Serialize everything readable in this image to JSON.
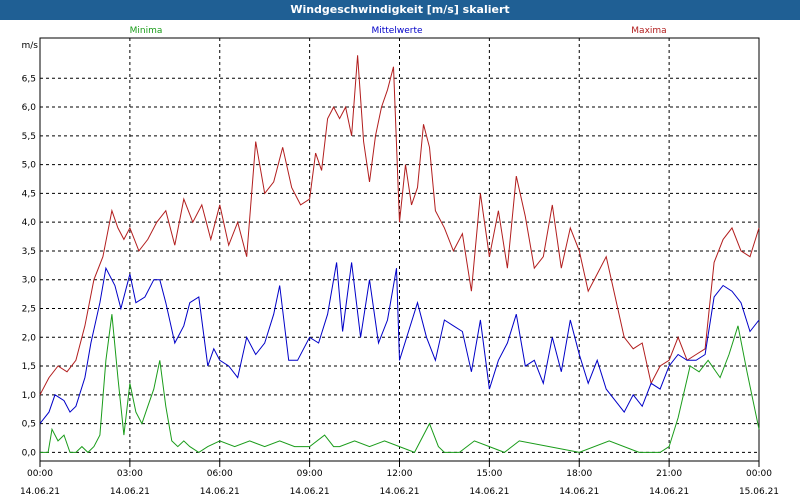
{
  "title": "Windgeschwindigkeit [m/s] skaliert",
  "chart_data": {
    "type": "line",
    "title": "Windgeschwindigkeit [m/s] skaliert",
    "ylabel": "m/s",
    "ylim": [
      -0.15,
      7.2
    ],
    "yticks": [
      0.0,
      0.5,
      1.0,
      1.5,
      2.0,
      2.5,
      3.0,
      3.5,
      4.0,
      4.5,
      5.0,
      5.5,
      6.0,
      6.5
    ],
    "ytick_labels": [
      "0,0",
      "0,5",
      "1,0",
      "1,5",
      "2,0",
      "2,5",
      "3,0",
      "3,5",
      "4,0",
      "4,5",
      "5,0",
      "5,5",
      "6,0",
      "6,5"
    ],
    "xlim": [
      0,
      24
    ],
    "xticks": [
      {
        "x": 0,
        "time": "00:00",
        "date": "14.06.21"
      },
      {
        "x": 3,
        "time": "03:00",
        "date": "14.06.21"
      },
      {
        "x": 6,
        "time": "06:00",
        "date": "14.06.21"
      },
      {
        "x": 9,
        "time": "09:00",
        "date": "14.06.21"
      },
      {
        "x": 12,
        "time": "12:00",
        "date": "14.06.21"
      },
      {
        "x": 15,
        "time": "15:00",
        "date": "14.06.21"
      },
      {
        "x": 18,
        "time": "18:00",
        "date": "14.06.21"
      },
      {
        "x": 21,
        "time": "21:00",
        "date": "14.06.21"
      },
      {
        "x": 24,
        "time": "00:00",
        "date": "15.06.21"
      }
    ],
    "grid": true,
    "legend_placement": "top",
    "series": [
      {
        "name": "Minima",
        "color": "#1a9c1a",
        "x": [
          0,
          0.27,
          0.4,
          0.6,
          0.8,
          1.0,
          1.2,
          1.4,
          1.6,
          1.8,
          2.0,
          2.2,
          2.4,
          2.6,
          2.8,
          3.0,
          3.2,
          3.4,
          3.6,
          3.8,
          4.0,
          4.2,
          4.4,
          4.6,
          4.8,
          5.0,
          5.3,
          5.6,
          6.0,
          6.5,
          7.0,
          7.5,
          8.0,
          8.5,
          9.0,
          9.5,
          9.8,
          10.0,
          10.5,
          11.0,
          11.5,
          12.0,
          12.5,
          13.0,
          13.3,
          13.5,
          14.0,
          14.5,
          15.0,
          15.5,
          16.0,
          17.0,
          18.0,
          19.0,
          20.0,
          20.7,
          21.0,
          21.3,
          21.7,
          22.0,
          22.3,
          22.7,
          23.0,
          23.3,
          23.6,
          24
        ],
        "y": [
          0.0,
          0.0,
          0.4,
          0.2,
          0.3,
          0.0,
          0.0,
          0.1,
          0.0,
          0.1,
          0.3,
          1.6,
          2.4,
          1.3,
          0.3,
          1.2,
          0.7,
          0.5,
          0.8,
          1.1,
          1.6,
          0.8,
          0.2,
          0.1,
          0.2,
          0.1,
          0.0,
          0.1,
          0.2,
          0.1,
          0.2,
          0.1,
          0.2,
          0.1,
          0.1,
          0.3,
          0.1,
          0.1,
          0.2,
          0.1,
          0.2,
          0.1,
          0.0,
          0.5,
          0.1,
          0.0,
          0.0,
          0.2,
          0.1,
          0.0,
          0.2,
          0.1,
          0.0,
          0.2,
          0.0,
          0.0,
          0.1,
          0.6,
          1.5,
          1.4,
          1.6,
          1.3,
          1.7,
          2.2,
          1.4,
          0.4
        ]
      },
      {
        "name": "Mittelwerte",
        "color": "#0000c8",
        "x": [
          0,
          0.3,
          0.5,
          0.8,
          1.0,
          1.2,
          1.5,
          1.7,
          2.0,
          2.2,
          2.5,
          2.7,
          3.0,
          3.2,
          3.5,
          3.8,
          4.0,
          4.2,
          4.5,
          4.8,
          5.0,
          5.3,
          5.6,
          5.8,
          6.0,
          6.3,
          6.6,
          6.9,
          7.2,
          7.5,
          7.8,
          8.0,
          8.3,
          8.6,
          9.0,
          9.3,
          9.6,
          9.9,
          10.1,
          10.4,
          10.7,
          11.0,
          11.3,
          11.6,
          11.9,
          12.0,
          12.3,
          12.6,
          12.9,
          13.2,
          13.5,
          13.8,
          14.1,
          14.4,
          14.7,
          15.0,
          15.3,
          15.6,
          15.9,
          16.2,
          16.5,
          16.8,
          17.1,
          17.4,
          17.7,
          18.0,
          18.3,
          18.6,
          18.9,
          19.2,
          19.5,
          19.8,
          20.1,
          20.4,
          20.7,
          21.0,
          21.3,
          21.6,
          21.9,
          22.2,
          22.5,
          22.8,
          23.1,
          23.4,
          23.7,
          24
        ],
        "y": [
          0.5,
          0.7,
          1.0,
          0.9,
          0.7,
          0.8,
          1.3,
          1.9,
          2.6,
          3.2,
          2.9,
          2.5,
          3.1,
          2.6,
          2.7,
          3.0,
          3.0,
          2.6,
          1.9,
          2.2,
          2.6,
          2.7,
          1.5,
          1.8,
          1.6,
          1.5,
          1.3,
          2.0,
          1.7,
          1.9,
          2.4,
          2.9,
          1.6,
          1.6,
          2.0,
          1.9,
          2.4,
          3.3,
          2.1,
          3.3,
          2.0,
          3.0,
          1.9,
          2.3,
          3.2,
          1.6,
          2.1,
          2.6,
          2.0,
          1.6,
          2.3,
          2.2,
          2.1,
          1.4,
          2.3,
          1.1,
          1.6,
          1.9,
          2.4,
          1.5,
          1.6,
          1.2,
          2.0,
          1.4,
          2.3,
          1.7,
          1.2,
          1.6,
          1.1,
          0.9,
          0.7,
          1.0,
          0.8,
          1.2,
          1.1,
          1.5,
          1.7,
          1.6,
          1.6,
          1.7,
          2.7,
          2.9,
          2.8,
          2.6,
          2.1,
          2.3
        ]
      },
      {
        "name": "Maxima",
        "color": "#b21e1e",
        "x": [
          0,
          0.3,
          0.6,
          0.9,
          1.2,
          1.5,
          1.8,
          2.1,
          2.4,
          2.6,
          2.8,
          3.0,
          3.3,
          3.6,
          3.9,
          4.2,
          4.5,
          4.8,
          5.1,
          5.4,
          5.7,
          6.0,
          6.3,
          6.6,
          6.9,
          7.2,
          7.5,
          7.8,
          8.1,
          8.4,
          8.7,
          9.0,
          9.2,
          9.4,
          9.6,
          9.8,
          10.0,
          10.2,
          10.4,
          10.6,
          10.8,
          11.0,
          11.2,
          11.4,
          11.6,
          11.8,
          12.0,
          12.2,
          12.4,
          12.6,
          12.8,
          13.0,
          13.2,
          13.5,
          13.8,
          14.1,
          14.4,
          14.7,
          15.0,
          15.3,
          15.6,
          15.9,
          16.2,
          16.5,
          16.8,
          17.1,
          17.4,
          17.7,
          18.0,
          18.3,
          18.6,
          18.9,
          19.2,
          19.5,
          19.8,
          20.1,
          20.4,
          20.7,
          21.0,
          21.3,
          21.6,
          21.9,
          22.2,
          22.5,
          22.8,
          23.1,
          23.4,
          23.7,
          24
        ],
        "y": [
          1.0,
          1.3,
          1.5,
          1.4,
          1.6,
          2.2,
          3.0,
          3.4,
          4.2,
          3.9,
          3.7,
          3.9,
          3.5,
          3.7,
          4.0,
          4.2,
          3.6,
          4.4,
          4.0,
          4.3,
          3.7,
          4.3,
          3.6,
          4.0,
          3.4,
          5.4,
          4.5,
          4.7,
          5.3,
          4.6,
          4.3,
          4.4,
          5.2,
          4.9,
          5.8,
          6.0,
          5.8,
          6.0,
          5.5,
          6.9,
          5.4,
          4.7,
          5.5,
          6.0,
          6.3,
          6.7,
          4.0,
          5.0,
          4.3,
          4.6,
          5.7,
          5.3,
          4.2,
          3.9,
          3.5,
          3.8,
          2.8,
          4.5,
          3.4,
          4.2,
          3.2,
          4.8,
          4.1,
          3.2,
          3.4,
          4.3,
          3.2,
          3.9,
          3.5,
          2.8,
          3.1,
          3.4,
          2.7,
          2.0,
          1.8,
          1.9,
          1.2,
          1.5,
          1.6,
          2.0,
          1.6,
          1.7,
          1.8,
          3.3,
          3.7,
          3.9,
          3.5,
          3.4,
          3.9
        ]
      }
    ]
  }
}
